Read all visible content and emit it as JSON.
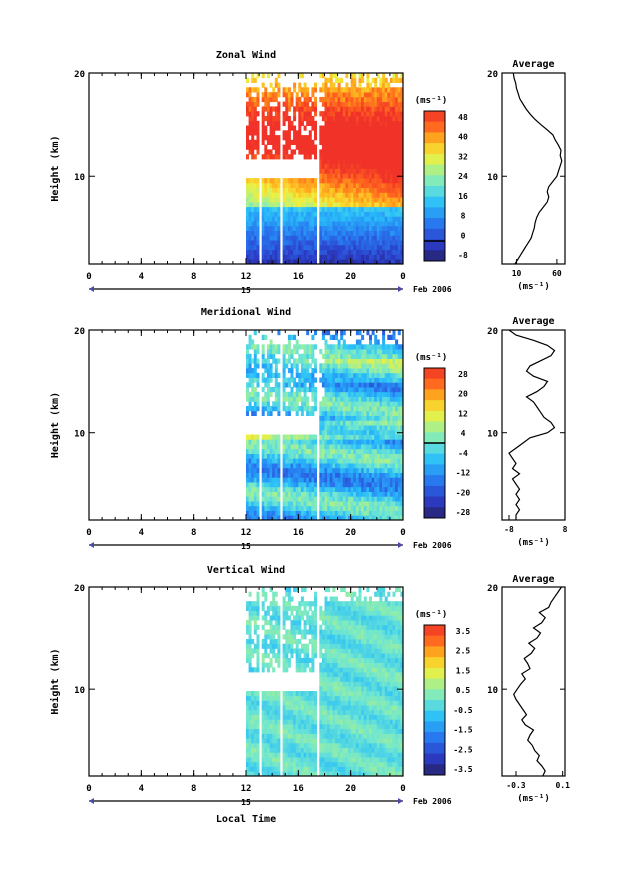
{
  "figure": {
    "xlabel": "Local Time",
    "date_label": "Feb 2006",
    "day_label": "15",
    "units_label": "(ms⁻¹)"
  },
  "chart_data": [
    {
      "type": "heatmap",
      "title": "Zonal Wind",
      "xlabel": "Local Time",
      "ylabel": "Height (km)",
      "xlim": [
        0,
        24
      ],
      "ylim": [
        1.5,
        20
      ],
      "xticks": [
        "0",
        "4",
        "8",
        "12",
        "16",
        "20",
        "0"
      ],
      "yticks": [
        "10",
        "20"
      ],
      "date": "Feb 2006",
      "day": "15",
      "data_time_range": [
        12,
        24
      ],
      "colorbar": {
        "label": "(ms⁻¹)",
        "range": [
          -8,
          52
        ],
        "ticks": [
          "48",
          "40",
          "32",
          "24",
          "16",
          "8",
          "0",
          "-8"
        ],
        "contour_level": 0
      },
      "profile": {
        "title": "Average",
        "xlim": [
          -8,
          70
        ],
        "xticks": [
          "10",
          "60"
        ],
        "yticks": [
          "10",
          "20"
        ],
        "xlabel": "(ms⁻¹)",
        "heights": [
          1.5,
          2.0,
          2.5,
          3.0,
          3.5,
          4.0,
          4.5,
          5.0,
          5.5,
          6.0,
          6.5,
          7.0,
          7.5,
          8.0,
          8.5,
          9.0,
          9.5,
          10.0,
          10.5,
          11.0,
          11.5,
          12.0,
          12.5,
          13.0,
          13.5,
          14.0,
          14.5,
          15.0,
          15.5,
          16.0,
          16.5,
          17.0,
          17.5,
          18.0,
          18.5,
          19.0,
          19.5,
          20.0
        ],
        "values": [
          8,
          12,
          16,
          20,
          24,
          28,
          30,
          32,
          33,
          35,
          38,
          43,
          48,
          50,
          48,
          50,
          55,
          60,
          62,
          64,
          66,
          64,
          65,
          62,
          58,
          55,
          48,
          40,
          33,
          27,
          22,
          18,
          14,
          12,
          10,
          9,
          7,
          6
        ]
      }
    },
    {
      "type": "heatmap",
      "title": "Meridional Wind",
      "xlabel": "Local Time",
      "ylabel": "Height (km)",
      "xlim": [
        0,
        24
      ],
      "ylim": [
        1.5,
        20
      ],
      "xticks": [
        "0",
        "4",
        "8",
        "12",
        "16",
        "20",
        "0"
      ],
      "yticks": [
        "10",
        "20"
      ],
      "date": "Feb 2006",
      "day": "15",
      "data_time_range": [
        12,
        24
      ],
      "colorbar": {
        "label": "(ms⁻¹)",
        "range": [
          -28,
          28
        ],
        "ticks": [
          "28",
          "20",
          "12",
          "4",
          "-4",
          "-12",
          "-20",
          "-28"
        ],
        "contour_level": 0
      },
      "profile": {
        "title": "Average",
        "xlim": [
          -10,
          8
        ],
        "xticks": [
          "-8",
          "8"
        ],
        "yticks": [
          "10",
          "20"
        ],
        "xlabel": "(ms⁻¹)",
        "heights": [
          1.5,
          2.0,
          2.5,
          3.0,
          3.5,
          4.0,
          4.5,
          5.0,
          5.5,
          6.0,
          6.5,
          7.0,
          7.5,
          8.0,
          8.5,
          9.0,
          9.5,
          10.0,
          10.5,
          11.0,
          11.5,
          12.0,
          12.5,
          13.0,
          13.5,
          14.0,
          14.5,
          15.0,
          15.5,
          16.0,
          16.5,
          17.0,
          17.5,
          18.0,
          18.5,
          19.0,
          19.5,
          20.0
        ],
        "values": [
          -6,
          -6,
          -5,
          -6,
          -5,
          -6,
          -5,
          -6,
          -7,
          -5,
          -7,
          -6,
          -7,
          -8,
          -6,
          -4,
          -2,
          3,
          5,
          4,
          2,
          1,
          0,
          -1,
          -3,
          0,
          2,
          3,
          -1,
          -3,
          -2,
          1,
          4,
          5,
          3,
          -1,
          -6,
          -8
        ]
      }
    },
    {
      "type": "heatmap",
      "title": "Vertical Wind",
      "xlabel": "Local Time",
      "ylabel": "Height (km)",
      "xlim": [
        0,
        24
      ],
      "ylim": [
        1.5,
        20
      ],
      "xticks": [
        "0",
        "4",
        "8",
        "12",
        "16",
        "20",
        "0"
      ],
      "yticks": [
        "10",
        "20"
      ],
      "date": "Feb 2006",
      "day": "15",
      "data_time_range": [
        12,
        24
      ],
      "colorbar": {
        "label": "(ms⁻¹)",
        "range": [
          -4,
          4
        ],
        "ticks": [
          "3.5",
          "2.5",
          "1.5",
          "0.5",
          "-0.5",
          "-1.5",
          "-2.5",
          "-3.5"
        ],
        "contour_level": null
      },
      "profile": {
        "title": "Average",
        "xlim": [
          -0.42,
          0.12
        ],
        "xticks": [
          "-0.3",
          "0.1"
        ],
        "yticks": [
          "10",
          "20"
        ],
        "xlabel": "(ms⁻¹)",
        "heights": [
          1.5,
          2.0,
          2.5,
          3.0,
          3.5,
          4.0,
          4.5,
          5.0,
          5.5,
          6.0,
          6.5,
          7.0,
          7.5,
          8.0,
          8.5,
          9.0,
          9.5,
          10.0,
          10.5,
          11.0,
          11.5,
          12.0,
          12.5,
          13.0,
          13.5,
          14.0,
          14.5,
          15.0,
          15.5,
          16.0,
          16.5,
          17.0,
          17.5,
          18.0,
          18.5,
          19.0,
          19.5,
          20.0
        ],
        "values": [
          -0.07,
          -0.05,
          -0.08,
          -0.12,
          -0.1,
          -0.14,
          -0.16,
          -0.2,
          -0.18,
          -0.15,
          -0.22,
          -0.25,
          -0.21,
          -0.24,
          -0.27,
          -0.3,
          -0.32,
          -0.29,
          -0.26,
          -0.22,
          -0.25,
          -0.18,
          -0.2,
          -0.23,
          -0.17,
          -0.14,
          -0.19,
          -0.12,
          -0.09,
          -0.15,
          -0.08,
          -0.05,
          -0.1,
          -0.02,
          0.0,
          0.03,
          0.06,
          0.09
        ]
      }
    }
  ]
}
